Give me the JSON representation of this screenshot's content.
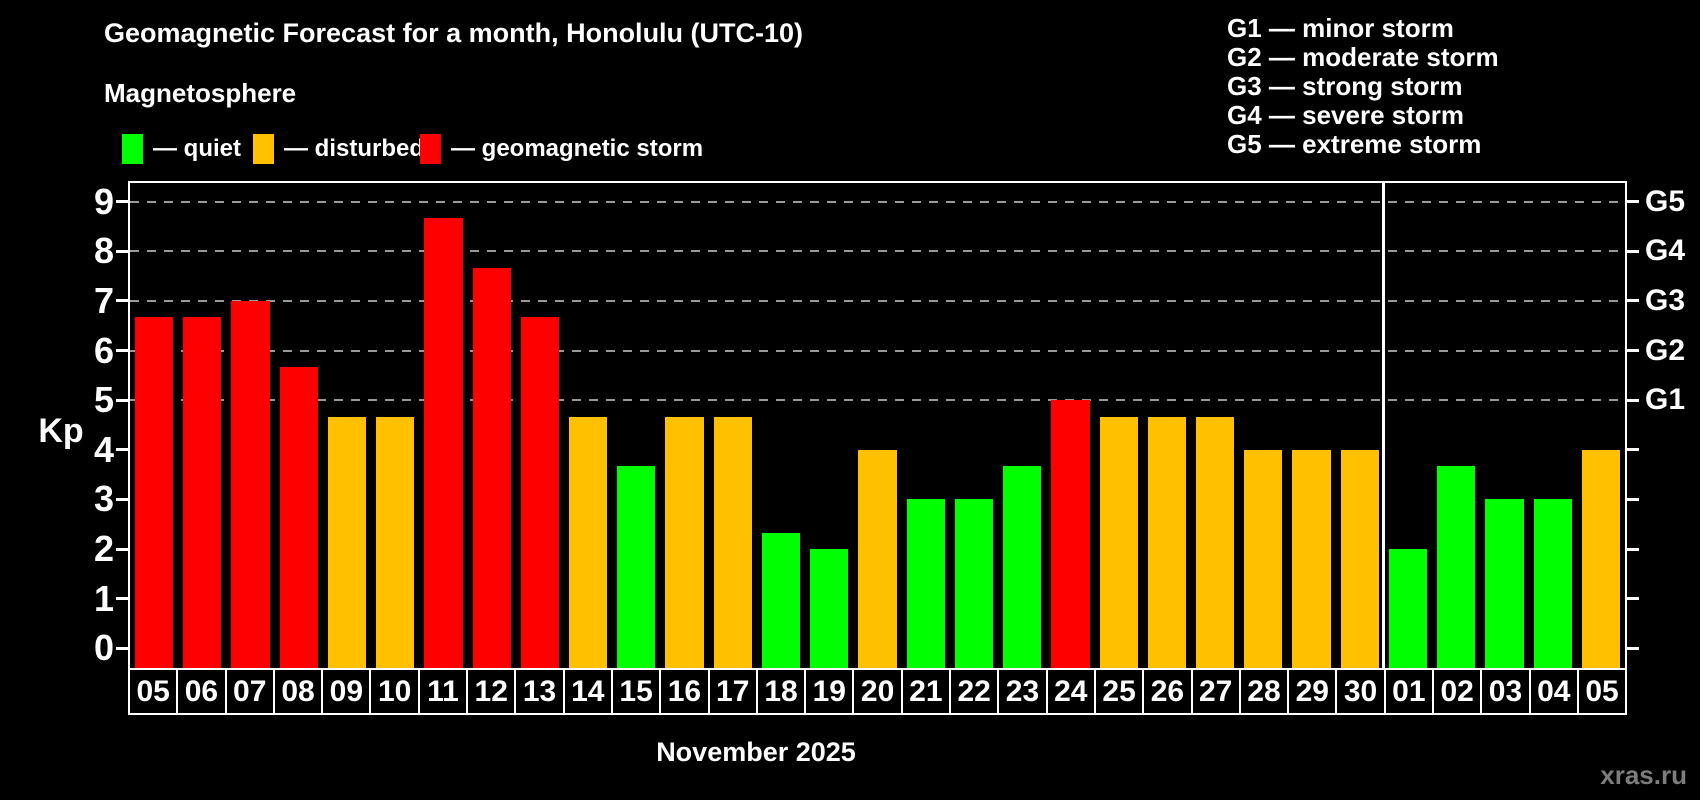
{
  "title": "Geomagnetic Forecast for a month, Honolulu (UTC-10)",
  "subtitle": "Magnetosphere",
  "legend": [
    {
      "status": "quiet",
      "label": "— quiet"
    },
    {
      "status": "disturbed",
      "label": "— disturbed"
    },
    {
      "status": "storm",
      "label": "— geomagnetic storm"
    }
  ],
  "g_scale_legend": [
    "G1 — minor storm",
    "G2 — moderate storm",
    "G3 — strong storm",
    "G4 — severe storm",
    "G5 — extreme storm"
  ],
  "colors": {
    "quiet": "#00ff00",
    "disturbed": "#ffc000",
    "storm": "#ff0000",
    "gridline": "#999999",
    "frame": "#ffffff",
    "watermark": "#7d7d7d",
    "background": "#000000"
  },
  "y_axis": {
    "label": "Kp",
    "ticks": [
      0,
      1,
      2,
      3,
      4,
      5,
      6,
      7,
      8,
      9
    ]
  },
  "g_levels": [
    {
      "label": "G1",
      "kp": 5
    },
    {
      "label": "G2",
      "kp": 6
    },
    {
      "label": "G3",
      "kp": 7
    },
    {
      "label": "G4",
      "kp": 8
    },
    {
      "label": "G5",
      "kp": 9
    }
  ],
  "x_axis": {
    "month_label": "November 2025"
  },
  "watermark": "xras.ru",
  "chart_data": {
    "type": "bar",
    "title": "Geomagnetic Forecast for a month, Honolulu (UTC-10)",
    "xlabel": "November 2025",
    "ylabel": "Kp",
    "ylim": [
      0,
      9
    ],
    "grid": "dashed horizontal at Kp 5-9 (G1-G5)",
    "legend_position": "top-left",
    "categories": [
      "05",
      "06",
      "07",
      "08",
      "09",
      "10",
      "11",
      "12",
      "13",
      "14",
      "15",
      "16",
      "17",
      "18",
      "19",
      "20",
      "21",
      "22",
      "23",
      "24",
      "25",
      "26",
      "27",
      "28",
      "29",
      "30",
      "01",
      "02",
      "03",
      "04",
      "05"
    ],
    "values": [
      6.67,
      6.67,
      7.0,
      5.67,
      4.67,
      4.67,
      8.67,
      7.67,
      6.67,
      4.67,
      3.67,
      4.67,
      4.67,
      2.33,
      2.0,
      4.0,
      3.0,
      3.0,
      3.67,
      5.0,
      4.67,
      4.67,
      4.67,
      4.0,
      4.0,
      4.0,
      2.0,
      3.67,
      3.0,
      3.0,
      4.0
    ],
    "statuses": [
      "storm",
      "storm",
      "storm",
      "storm",
      "disturbed",
      "disturbed",
      "storm",
      "storm",
      "storm",
      "disturbed",
      "quiet",
      "disturbed",
      "disturbed",
      "quiet",
      "quiet",
      "disturbed",
      "quiet",
      "quiet",
      "quiet",
      "storm",
      "disturbed",
      "disturbed",
      "disturbed",
      "disturbed",
      "disturbed",
      "disturbed",
      "quiet",
      "quiet",
      "quiet",
      "quiet",
      "disturbed"
    ],
    "month_separator_before_index": 26
  }
}
